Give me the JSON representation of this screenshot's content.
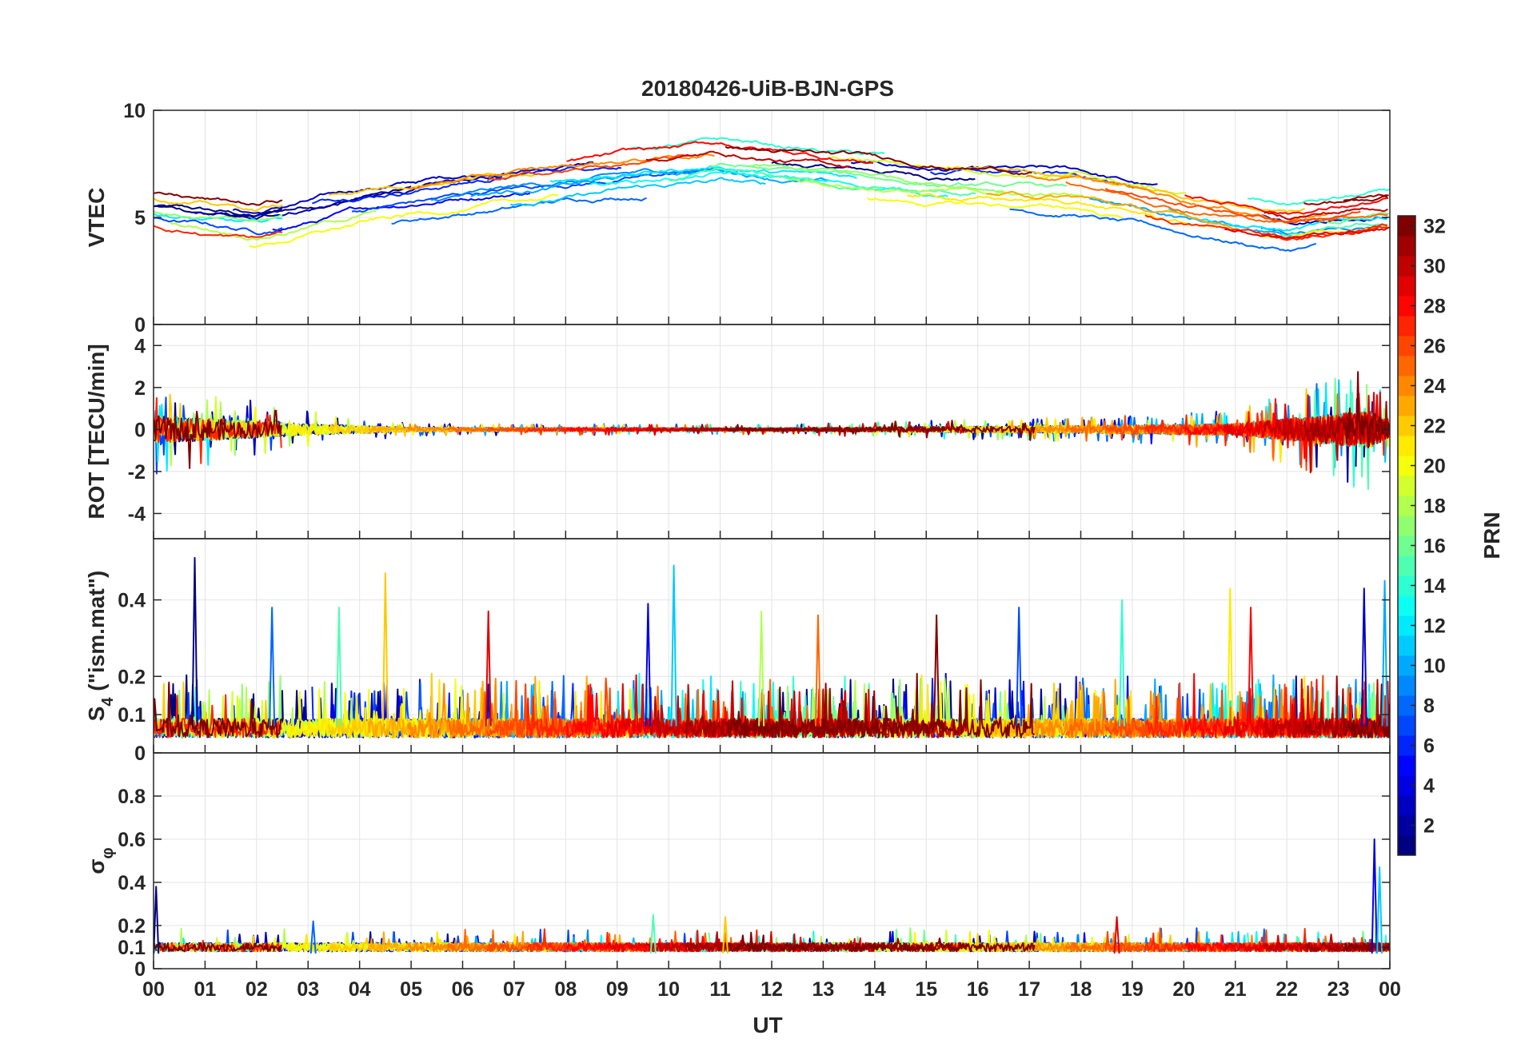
{
  "chart_data": [
    {
      "type": "line",
      "title": "20180426-UiB-BJN-GPS",
      "ylabel": "VTEC",
      "ylim": [
        0,
        10
      ],
      "yticks": [
        0,
        5,
        10
      ],
      "xlim": [
        0,
        24
      ],
      "series_description_source": "colormap",
      "baseline": 5.8,
      "noise": 0.9,
      "series_level_by_hour": [
        [
          0,
          5.2
        ],
        [
          2,
          4.6
        ],
        [
          4,
          5.6
        ],
        [
          6,
          6.3
        ],
        [
          9,
          7.1
        ],
        [
          11,
          7.5
        ],
        [
          13,
          7.0
        ],
        [
          15,
          6.6
        ],
        [
          18,
          6.3
        ],
        [
          20,
          5.3
        ],
        [
          22,
          4.6
        ],
        [
          24,
          5.1
        ]
      ]
    },
    {
      "type": "line",
      "ylabel": "ROT [TECU/min]",
      "ylim": [
        -5.2,
        5
      ],
      "yticks": [
        -4,
        -2,
        0,
        2,
        4
      ],
      "xlim": [
        0,
        24
      ],
      "series_level_by_hour": [
        [
          0,
          0
        ],
        [
          24,
          0
        ]
      ],
      "activity_by_hour": [
        [
          0,
          1.1
        ],
        [
          3,
          0.45
        ],
        [
          5,
          0.15
        ],
        [
          12,
          0.12
        ],
        [
          18,
          0.3
        ],
        [
          21,
          0.45
        ],
        [
          23.6,
          1.5
        ],
        [
          24,
          0.6
        ]
      ]
    },
    {
      "type": "line",
      "ylabel": "S4 (\"ism.mat\")",
      "ylabel_parts": [
        "S",
        "4",
        " (\"ism.mat\")"
      ],
      "ylim": [
        0,
        0.56
      ],
      "yticks": [
        0,
        0.1,
        0.2,
        0.4
      ],
      "xlim": [
        0,
        24
      ],
      "series_level_by_hour": [
        [
          0,
          0.07
        ],
        [
          24,
          0.07
        ]
      ],
      "spikes": [
        [
          0.8,
          0.51
        ],
        [
          2.3,
          0.38
        ],
        [
          3.6,
          0.38
        ],
        [
          4.5,
          0.47
        ],
        [
          6.5,
          0.37
        ],
        [
          9.6,
          0.39
        ],
        [
          10.1,
          0.49
        ],
        [
          11.8,
          0.37
        ],
        [
          12.9,
          0.36
        ],
        [
          15.2,
          0.36
        ],
        [
          16.8,
          0.38
        ],
        [
          18.8,
          0.4
        ],
        [
          20.9,
          0.43
        ],
        [
          21.3,
          0.38
        ],
        [
          23.5,
          0.43
        ],
        [
          23.9,
          0.45
        ]
      ]
    },
    {
      "type": "line",
      "ylabel": "σφ",
      "ylabel_parts": [
        "σ",
        "φ"
      ],
      "ylim": [
        0,
        1
      ],
      "yticks": [
        0,
        0.1,
        0.2,
        0.4,
        0.6,
        0.8
      ],
      "xlim": [
        0,
        24
      ],
      "series_level_by_hour": [
        [
          0,
          0.1
        ],
        [
          24,
          0.1
        ]
      ],
      "spikes": [
        [
          0.05,
          0.38
        ],
        [
          3.1,
          0.22
        ],
        [
          9.7,
          0.25
        ],
        [
          11.1,
          0.24
        ],
        [
          18.7,
          0.24
        ],
        [
          23.7,
          0.6
        ],
        [
          23.8,
          0.47
        ]
      ]
    }
  ],
  "x_axis": {
    "label": "UT",
    "tick_labels": [
      "00",
      "01",
      "02",
      "03",
      "04",
      "05",
      "06",
      "07",
      "08",
      "09",
      "10",
      "11",
      "12",
      "13",
      "14",
      "15",
      "16",
      "17",
      "18",
      "19",
      "20",
      "21",
      "22",
      "23",
      "00"
    ]
  },
  "colorbar": {
    "label": "PRN",
    "range": [
      1,
      32
    ],
    "tick_labels": [
      "2",
      "4",
      "6",
      "8",
      "10",
      "12",
      "14",
      "16",
      "18",
      "20",
      "22",
      "24",
      "26",
      "28",
      "30",
      "32"
    ],
    "colormap": "jet",
    "colors": [
      "#00008f",
      "#0000ff",
      "#0080ff",
      "#00ffff",
      "#80ff80",
      "#ffff00",
      "#ff8000",
      "#ff0000",
      "#800000"
    ]
  },
  "series_prns": [
    1,
    2,
    3,
    5,
    6,
    7,
    8,
    9,
    10,
    11,
    12,
    13,
    14,
    15,
    16,
    17,
    18,
    19,
    20,
    21,
    22,
    23,
    24,
    25,
    26,
    27,
    28,
    29,
    30,
    31,
    32
  ]
}
